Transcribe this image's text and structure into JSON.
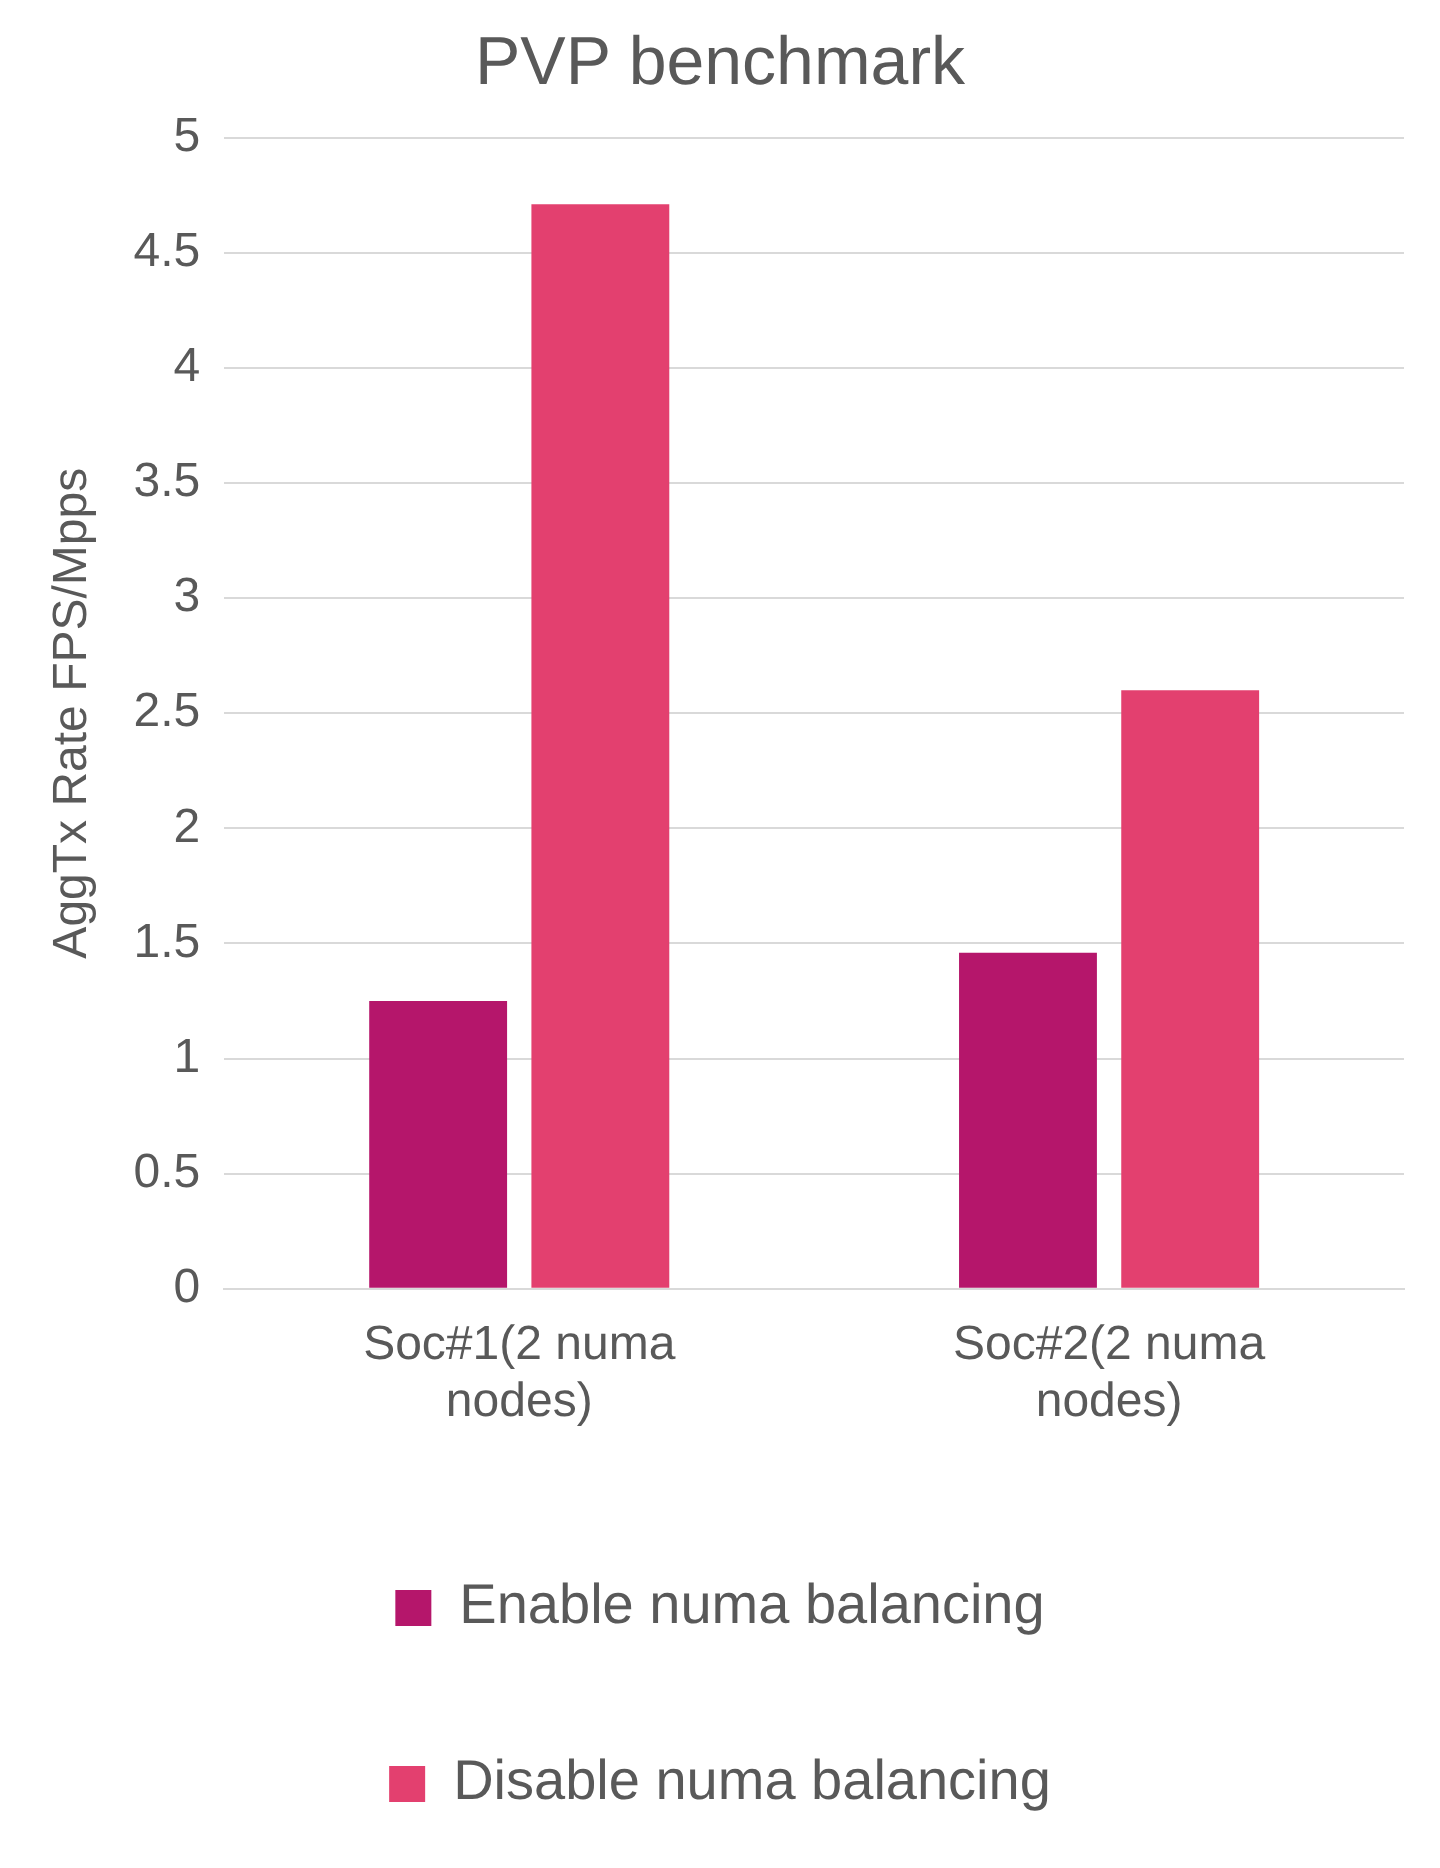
{
  "chart_data": {
    "type": "bar",
    "title": "PVP benchmark",
    "ylabel": "AggTx Rate FPS/Mpps",
    "categories": [
      "Soc#1(2 numa nodes)",
      "Soc#2(2 numa nodes)"
    ],
    "series": [
      {
        "name": "Enable numa balancing",
        "color": "#b5166b",
        "values": [
          1.25,
          1.46
        ]
      },
      {
        "name": "Disable numa balancing",
        "color": "#e3406f",
        "values": [
          4.71,
          2.6
        ]
      }
    ],
    "ylim": [
      0,
      5
    ],
    "yticks": [
      0,
      0.5,
      1,
      1.5,
      2,
      2.5,
      3,
      3.5,
      4,
      4.5,
      5
    ],
    "grid": "y",
    "legend": "bottom"
  }
}
